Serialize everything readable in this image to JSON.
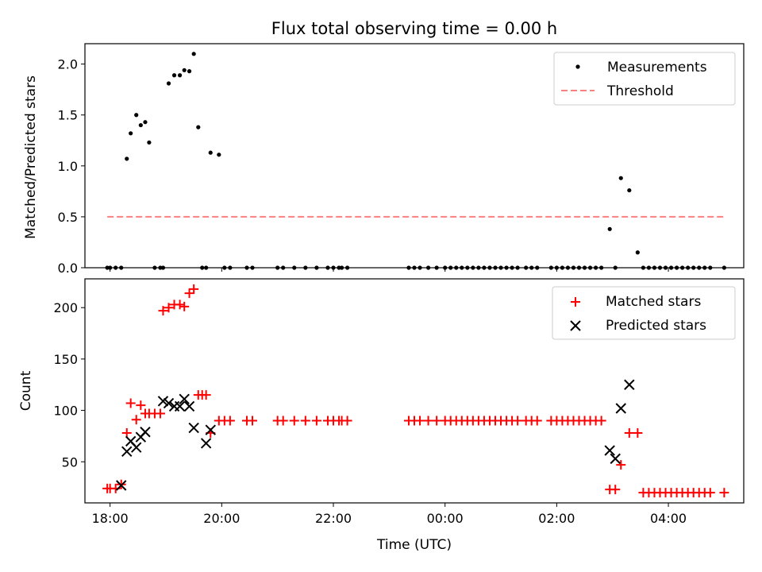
{
  "colors": {
    "matched": "#ff0000",
    "predicted": "#000000",
    "threshold": "#ff7f7f",
    "measurement": "#000000"
  },
  "chart_data": [
    {
      "type": "scatter",
      "title": "Flux total observing time = 0.00 h",
      "xlabel": "",
      "ylabel": "Matched/Predicted stars",
      "xlim": [
        -0.45,
        11.35
      ],
      "ylim": [
        0.0,
        2.2
      ],
      "x_unit": "hours since 18:00 UTC",
      "xticks": [
        0,
        2,
        4,
        6,
        8,
        10
      ],
      "yticks": [
        0.0,
        0.5,
        1.0,
        1.5,
        2.0
      ],
      "ytick_labels": [
        "0.0",
        "0.5",
        "1.0",
        "1.5",
        "2.0"
      ],
      "legend_location": "upper right",
      "series": [
        {
          "name": "Measurements",
          "kind": "scatter",
          "x": [
            -0.05,
            0.0,
            0.1,
            0.2,
            0.3,
            0.37,
            0.47,
            0.55,
            0.63,
            0.7,
            0.8,
            0.9,
            0.95,
            1.05,
            1.15,
            1.25,
            1.33,
            1.42,
            1.5,
            1.58,
            1.65,
            1.72,
            1.8,
            1.95,
            2.05,
            2.15,
            2.45,
            2.55,
            3.0,
            3.1,
            3.3,
            3.5,
            3.7,
            3.9,
            4.0,
            4.1,
            4.15,
            4.25,
            5.35,
            5.45,
            5.55,
            5.7,
            5.85,
            6.0,
            6.1,
            6.2,
            6.3,
            6.4,
            6.5,
            6.6,
            6.7,
            6.8,
            6.9,
            7.0,
            7.1,
            7.2,
            7.3,
            7.45,
            7.55,
            7.65,
            7.9,
            8.0,
            8.1,
            8.2,
            8.3,
            8.4,
            8.5,
            8.6,
            8.7,
            8.8,
            8.95,
            9.05,
            9.15,
            9.3,
            9.45,
            9.55,
            9.65,
            9.75,
            9.85,
            9.95,
            10.05,
            10.15,
            10.25,
            10.35,
            10.45,
            10.55,
            10.65,
            10.75,
            11.0
          ],
          "y": [
            0,
            0,
            0,
            0,
            1.07,
            1.32,
            1.5,
            1.4,
            1.43,
            1.23,
            0,
            0,
            0,
            1.81,
            1.89,
            1.89,
            1.94,
            1.93,
            2.1,
            1.38,
            0,
            0,
            1.13,
            1.11,
            0,
            0,
            0,
            0,
            0,
            0,
            0,
            0,
            0,
            0,
            0,
            0,
            0,
            0,
            0,
            0,
            0,
            0,
            0,
            0,
            0,
            0,
            0,
            0,
            0,
            0,
            0,
            0,
            0,
            0,
            0,
            0,
            0,
            0,
            0,
            0,
            0,
            0,
            0,
            0,
            0,
            0,
            0,
            0,
            0,
            0,
            0.38,
            0,
            0.88,
            0.76,
            0.15,
            0,
            0,
            0,
            0,
            0,
            0,
            0,
            0,
            0,
            0,
            0,
            0,
            0,
            0
          ]
        },
        {
          "name": "Threshold",
          "kind": "dashed-line",
          "x": [
            -0.05,
            11.0
          ],
          "y": [
            0.5,
            0.5
          ]
        }
      ]
    },
    {
      "type": "scatter",
      "title": "",
      "xlabel": "Time (UTC)",
      "ylabel": "Count",
      "xlim": [
        -0.45,
        11.35
      ],
      "ylim": [
        10,
        228
      ],
      "x_unit": "hours since 18:00 UTC",
      "xticks": [
        0,
        2,
        4,
        6,
        8,
        10
      ],
      "xtick_labels": [
        "18:00",
        "20:00",
        "22:00",
        "00:00",
        "02:00",
        "04:00"
      ],
      "yticks": [
        50,
        100,
        150,
        200
      ],
      "ytick_labels": [
        "50",
        "100",
        "150",
        "200"
      ],
      "legend_location": "upper right",
      "series": [
        {
          "name": "Matched stars",
          "marker": "plus",
          "x": [
            -0.05,
            0.0,
            0.1,
            0.2,
            0.3,
            0.37,
            0.47,
            0.55,
            0.63,
            0.7,
            0.8,
            0.9,
            0.95,
            1.05,
            1.15,
            1.25,
            1.33,
            1.42,
            1.5,
            1.58,
            1.65,
            1.72,
            1.8,
            1.95,
            2.05,
            2.15,
            2.45,
            2.55,
            3.0,
            3.1,
            3.3,
            3.5,
            3.7,
            3.9,
            4.0,
            4.1,
            4.15,
            4.25,
            5.35,
            5.45,
            5.55,
            5.7,
            5.85,
            6.0,
            6.1,
            6.2,
            6.3,
            6.4,
            6.5,
            6.6,
            6.7,
            6.8,
            6.9,
            7.0,
            7.1,
            7.2,
            7.3,
            7.45,
            7.55,
            7.65,
            7.9,
            8.0,
            8.1,
            8.2,
            8.3,
            8.4,
            8.5,
            8.6,
            8.7,
            8.8,
            8.95,
            9.05,
            9.15,
            9.3,
            9.45,
            9.55,
            9.65,
            9.75,
            9.85,
            9.95,
            10.05,
            10.15,
            10.25,
            10.35,
            10.45,
            10.55,
            10.65,
            10.75,
            11.0
          ],
          "y": [
            24,
            24,
            24,
            28,
            78,
            107,
            91,
            105,
            97,
            97,
            97,
            97,
            197,
            200,
            203,
            203,
            201,
            214,
            218,
            115,
            115,
            115,
            78,
            90,
            90,
            90,
            90,
            90,
            90,
            90,
            90,
            90,
            90,
            90,
            90,
            90,
            90,
            90,
            90,
            90,
            90,
            90,
            90,
            90,
            90,
            90,
            90,
            90,
            90,
            90,
            90,
            90,
            90,
            90,
            90,
            90,
            90,
            90,
            90,
            90,
            90,
            90,
            90,
            90,
            90,
            90,
            90,
            90,
            90,
            90,
            23,
            23,
            47,
            78,
            78,
            20,
            20,
            20,
            20,
            20,
            20,
            20,
            20,
            20,
            20,
            20,
            20,
            20,
            20
          ]
        },
        {
          "name": "Predicted stars",
          "marker": "x",
          "x": [
            0.2,
            0.3,
            0.37,
            0.47,
            0.55,
            0.63,
            0.95,
            1.05,
            1.15,
            1.25,
            1.33,
            1.42,
            1.5,
            1.72,
            1.8,
            8.95,
            9.05,
            9.15,
            9.3
          ],
          "y": [
            27,
            60,
            70,
            64,
            74,
            79,
            109,
            107,
            104,
            104,
            111,
            104,
            83,
            68,
            81,
            61,
            53,
            102,
            125
          ]
        }
      ]
    }
  ]
}
